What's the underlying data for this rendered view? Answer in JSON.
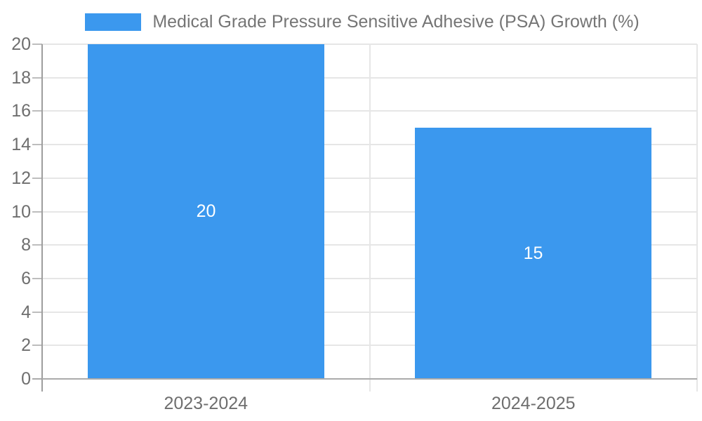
{
  "legend": {
    "label": "Medical Grade Pressure Sensitive Adhesive (PSA) Growth (%)"
  },
  "chart_data": {
    "type": "bar",
    "title": "Medical Grade Pressure Sensitive Adhesive (PSA) Growth (%)",
    "categories": [
      "2023-2024",
      "2024-2025"
    ],
    "values": [
      20,
      15
    ],
    "data_labels": [
      "20",
      "15"
    ],
    "xlabel": "",
    "ylabel": "",
    "ylim": [
      0,
      20
    ],
    "yticks": [
      0,
      2,
      4,
      6,
      8,
      10,
      12,
      14,
      16,
      18,
      20
    ],
    "grid": true,
    "legend_position": "top",
    "colors": {
      "bar": "#3b98ee",
      "data_label": "#ffffff",
      "axis_text": "#6e6e6e",
      "legend_text": "#757575",
      "gridline": "#e6e6e6",
      "axis_line": "#9e9e9e",
      "baseline": "#ababab",
      "tick": "#bdbdbd",
      "background": "#ffffff"
    }
  }
}
